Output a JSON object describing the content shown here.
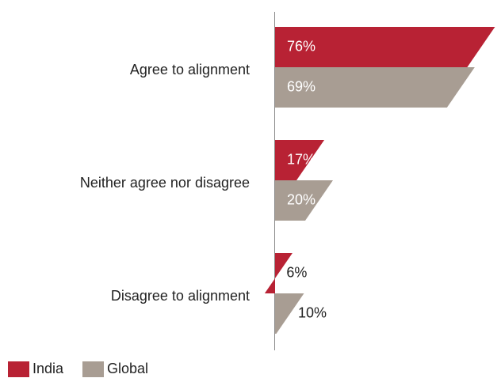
{
  "chart_data": {
    "type": "bar",
    "orientation": "horizontal",
    "categories": [
      "Agree to alignment",
      "Neither agree nor disagree",
      "Disagree to alignment"
    ],
    "series": [
      {
        "name": "India",
        "values": [
          76,
          17,
          6
        ],
        "labels": [
          "76%",
          "17%",
          "6%"
        ],
        "color": "#b82234"
      },
      {
        "name": "Global",
        "values": [
          69,
          20,
          10
        ],
        "labels": [
          "69%",
          "20%",
          "10%"
        ],
        "color": "#a89d93"
      }
    ],
    "value_suffix": "%",
    "xlim": [
      0,
      80
    ],
    "grid": false,
    "legend": "bottom-left",
    "title": "",
    "xlabel": "",
    "ylabel": ""
  }
}
